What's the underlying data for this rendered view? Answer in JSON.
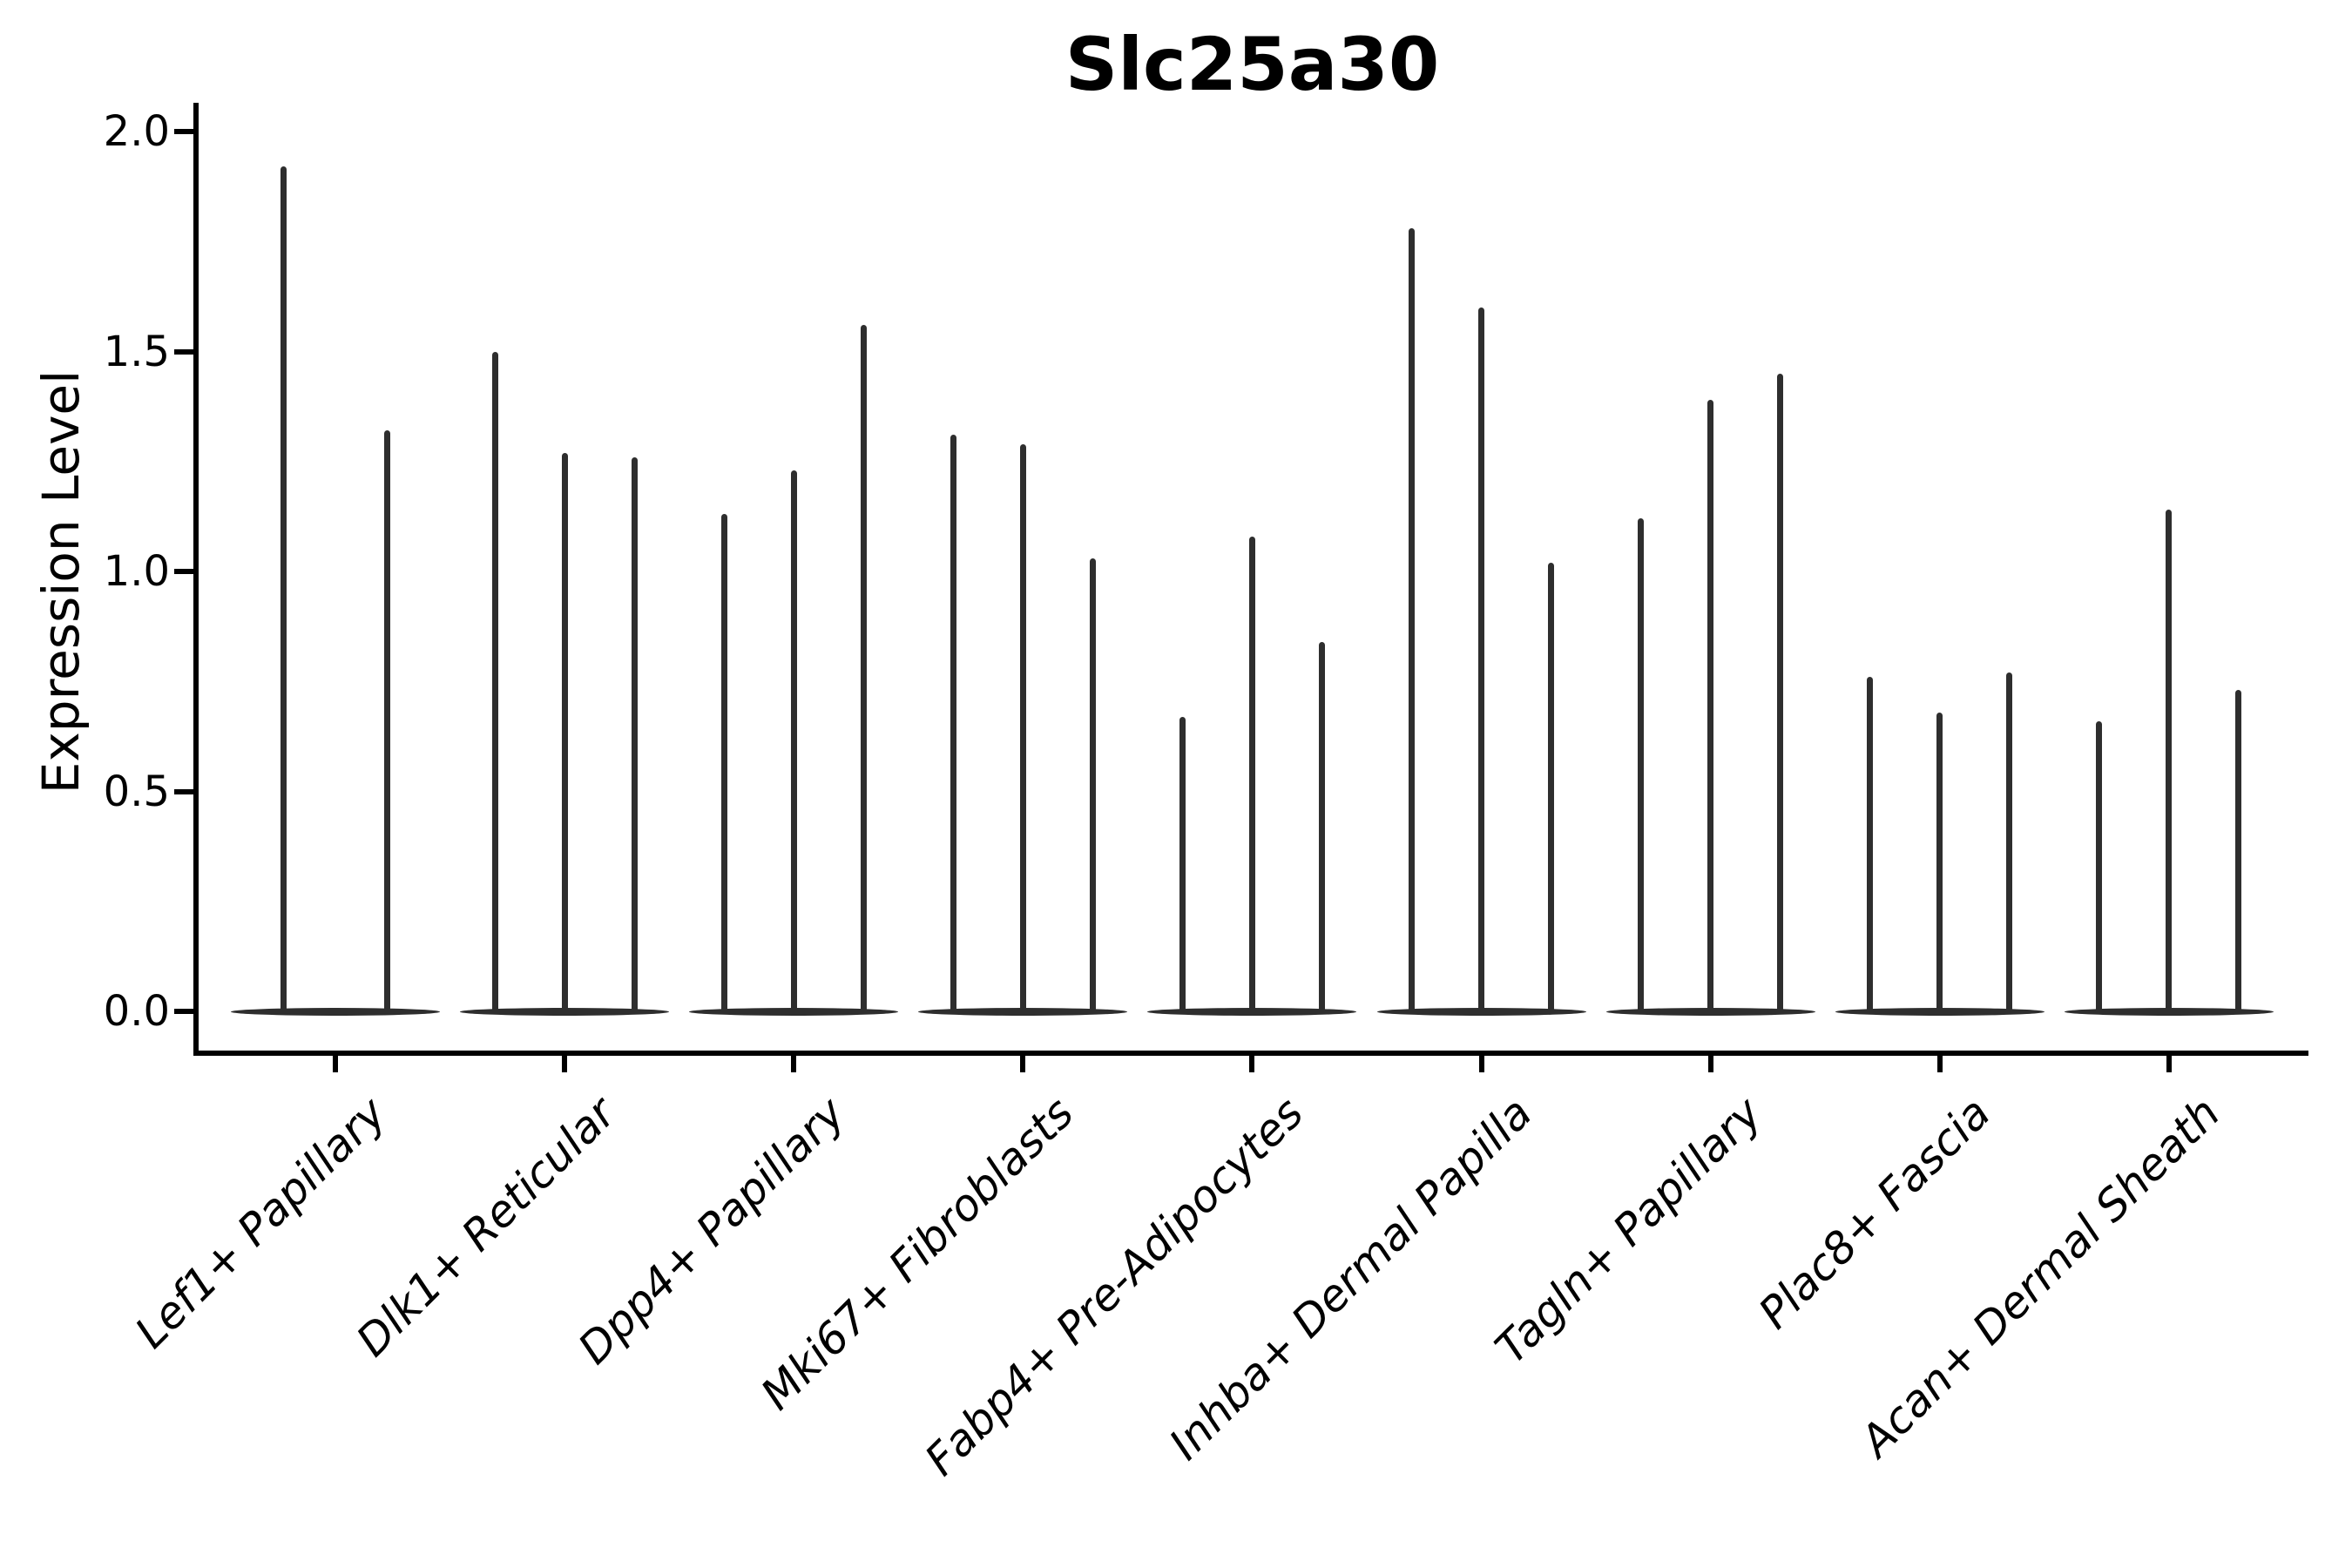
{
  "title": "Slc25a30",
  "ylabel": "Expression Level",
  "chart_data": {
    "type": "violin",
    "title": "Slc25a30",
    "xlabel": "",
    "ylabel": "Expression Level",
    "ylim": [
      -0.09,
      2.07
    ],
    "yticks": [
      0.0,
      0.5,
      1.0,
      1.5,
      2.0
    ],
    "ytick_labels": [
      "0.0",
      "0.5",
      "1.0",
      "1.5",
      "2.0"
    ],
    "grid": false,
    "legend": null,
    "categories": [
      "Lef1+ Papillary",
      "Dlk1+ Reticular",
      "Dpp4+ Papillary",
      "Mki67+ Fibroblasts",
      "Fabp4+ Pre-Adipocytes",
      "Inhba+ Dermal Papilla",
      "Tagln+ Papillary",
      "Plac8+ Fascia",
      "Acan+ Dermal Sheath"
    ],
    "groups": [
      {
        "category": "Lef1+ Papillary",
        "violins": [
          {
            "offset": -60,
            "max": 1.92
          },
          {
            "offset": 59,
            "max": 1.32
          }
        ]
      },
      {
        "category": "Dlk1+ Reticular",
        "violins": [
          {
            "offset": -80,
            "max": 1.5
          },
          {
            "offset": 0,
            "max": 1.27
          },
          {
            "offset": 80,
            "max": 1.26
          }
        ]
      },
      {
        "category": "Dpp4+ Papillary",
        "violins": [
          {
            "offset": -80,
            "max": 1.13
          },
          {
            "offset": 0,
            "max": 1.23
          },
          {
            "offset": 80,
            "max": 1.56
          }
        ]
      },
      {
        "category": "Mki67+ Fibroblasts",
        "violins": [
          {
            "offset": -80,
            "max": 1.31
          },
          {
            "offset": 0,
            "max": 1.29
          },
          {
            "offset": 80,
            "max": 1.03
          }
        ]
      },
      {
        "category": "Fabp4+ Pre-Adipocytes",
        "violins": [
          {
            "offset": -80,
            "max": 0.67
          },
          {
            "offset": 0,
            "max": 1.08
          },
          {
            "offset": 80,
            "max": 0.84
          }
        ]
      },
      {
        "category": "Inhba+ Dermal Papilla",
        "violins": [
          {
            "offset": -80,
            "max": 1.78
          },
          {
            "offset": 0,
            "max": 1.6
          },
          {
            "offset": 80,
            "max": 1.02
          }
        ]
      },
      {
        "category": "Tagln+ Papillary",
        "violins": [
          {
            "offset": -80,
            "max": 1.12
          },
          {
            "offset": 0,
            "max": 1.39
          },
          {
            "offset": 80,
            "max": 1.45
          }
        ]
      },
      {
        "category": "Plac8+ Fascia",
        "violins": [
          {
            "offset": -80,
            "max": 0.76
          },
          {
            "offset": 0,
            "max": 0.68
          },
          {
            "offset": 80,
            "max": 0.77
          }
        ]
      },
      {
        "category": "Acan+ Dermal Sheath",
        "violins": [
          {
            "offset": -80,
            "max": 0.66
          },
          {
            "offset": 0,
            "max": 1.14
          },
          {
            "offset": 80,
            "max": 0.73
          }
        ]
      }
    ],
    "colors": {
      "violin": "#2e2e2e",
      "axis": "#000000",
      "text": "#000000",
      "background": "#ffffff"
    }
  }
}
